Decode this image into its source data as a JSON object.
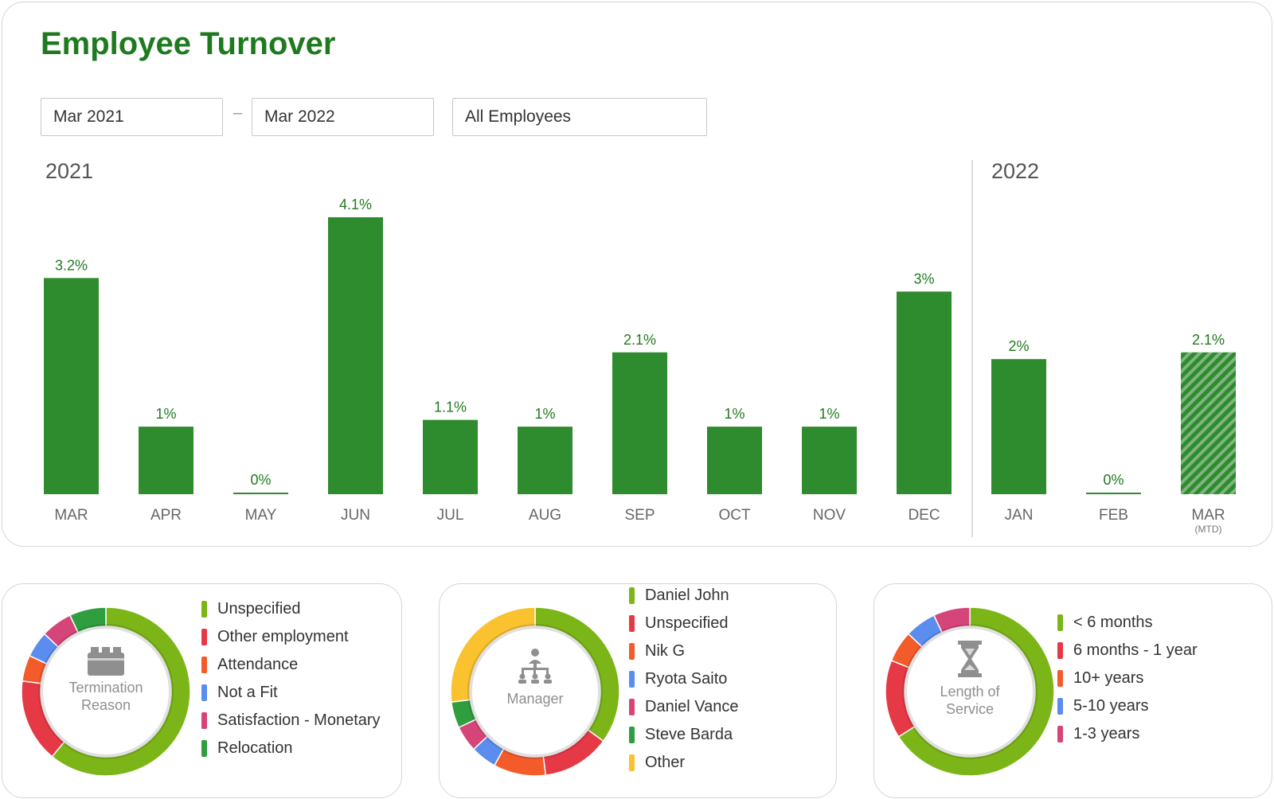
{
  "header": {
    "title": "Employee Turnover",
    "start_date": "Mar 2021",
    "separator": "–",
    "end_date": "Mar 2022",
    "employee_filter": "All Employees"
  },
  "chart_data": [
    {
      "type": "bar",
      "groups": [
        {
          "label": "2021",
          "categories": [
            "MAR",
            "APR",
            "MAY",
            "JUN",
            "JUL",
            "AUG",
            "SEP",
            "OCT",
            "NOV",
            "DEC"
          ]
        },
        {
          "label": "2022",
          "categories": [
            "JAN",
            "FEB",
            "MAR"
          ]
        }
      ],
      "categories": [
        "MAR",
        "APR",
        "MAY",
        "JUN",
        "JUL",
        "AUG",
        "SEP",
        "OCT",
        "NOV",
        "DEC",
        "JAN",
        "FEB",
        "MAR"
      ],
      "values": [
        3.2,
        1,
        0,
        4.1,
        1.1,
        1,
        2.1,
        1,
        1,
        3,
        2,
        0,
        2.1
      ],
      "value_labels": [
        "3.2%",
        "1%",
        "0%",
        "4.1%",
        "1.1%",
        "1%",
        "2.1%",
        "1%",
        "1%",
        "3%",
        "2%",
        "0%",
        "2.1%"
      ],
      "category_sublabels": [
        "",
        "",
        "",
        "",
        "",
        "",
        "",
        "",
        "",
        "",
        "",
        "",
        "(MTD)"
      ],
      "partial": [
        false,
        false,
        false,
        false,
        false,
        false,
        false,
        false,
        false,
        false,
        false,
        false,
        true
      ],
      "unit": "%",
      "ylim": [
        0,
        4.1
      ],
      "grid": false,
      "bar_color": "#2e8b2e",
      "label_color": "#1f7a1f"
    },
    {
      "type": "pie",
      "center_label": "Termination Reason",
      "icon": "briefcase-icon",
      "series": [
        {
          "name": "Unspecified",
          "value": 61,
          "color": "#7cb518"
        },
        {
          "name": "Other employment",
          "value": 16,
          "color": "#e63946"
        },
        {
          "name": "Attendance",
          "value": 5,
          "color": "#f45b2a"
        },
        {
          "name": "Not a Fit",
          "value": 5,
          "color": "#5b8def"
        },
        {
          "name": "Satisfaction - Monetary",
          "value": 6,
          "color": "#d6457a"
        },
        {
          "name": "Relocation",
          "value": 7,
          "color": "#2e9e3e"
        }
      ]
    },
    {
      "type": "pie",
      "center_label": "Manager",
      "icon": "org-chart-icon",
      "series": [
        {
          "name": "Daniel John",
          "value": 35,
          "color": "#7cb518"
        },
        {
          "name": "Unspecified",
          "value": 13,
          "color": "#e63946"
        },
        {
          "name": "Nik G",
          "value": 10,
          "color": "#f45b2a"
        },
        {
          "name": "Ryota Saito",
          "value": 5,
          "color": "#5b8def"
        },
        {
          "name": "Daniel Vance",
          "value": 5,
          "color": "#d6457a"
        },
        {
          "name": "Steve Barda",
          "value": 5,
          "color": "#2e9e3e"
        },
        {
          "name": "Other",
          "value": 27,
          "color": "#f9c22e"
        }
      ]
    },
    {
      "type": "pie",
      "center_label": "Length of Service",
      "icon": "hourglass-icon",
      "series": [
        {
          "name": "< 6 months",
          "value": 66,
          "color": "#7cb518"
        },
        {
          "name": "6 months - 1 year",
          "value": 15,
          "color": "#e63946"
        },
        {
          "name": "10+ years",
          "value": 6,
          "color": "#f45b2a"
        },
        {
          "name": "5-10 years",
          "value": 6,
          "color": "#5b8def"
        },
        {
          "name": "1-3 years",
          "value": 7,
          "color": "#d6457a"
        }
      ]
    }
  ]
}
